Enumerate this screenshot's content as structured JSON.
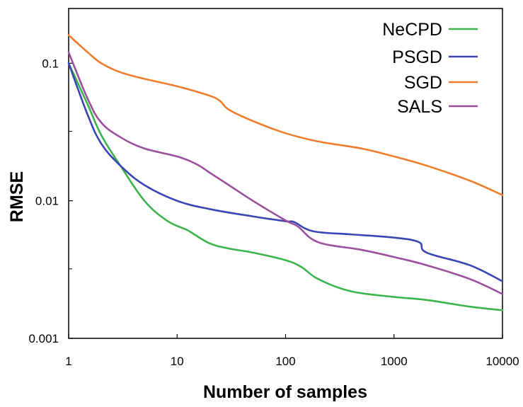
{
  "chart_data": {
    "type": "line",
    "xlabel": "Number of samples",
    "ylabel": "RMSE",
    "xscale": "log",
    "yscale": "log",
    "xlim": [
      1,
      10000
    ],
    "ylim": [
      0.001,
      0.25
    ],
    "xticks": [
      {
        "value": 1,
        "label": "1"
      },
      {
        "value": 10,
        "label": "10"
      },
      {
        "value": 100,
        "label": "100"
      },
      {
        "value": 1000,
        "label": "1000"
      },
      {
        "value": 10000,
        "label": "10000"
      }
    ],
    "yticks": [
      {
        "value": 0.001,
        "label": "0.001"
      },
      {
        "value": 0.01,
        "label": "0.01"
      },
      {
        "value": 0.1,
        "label": "0.1"
      }
    ],
    "y_minor_ticks": [
      0.0032,
      0.032
    ],
    "grid": false,
    "legend_position": "top-right",
    "series": [
      {
        "name": "NeCPD",
        "color": "#3cb44b",
        "points": [
          [
            1,
            0.1
          ],
          [
            1.5,
            0.05
          ],
          [
            2,
            0.03
          ],
          [
            3,
            0.018
          ],
          [
            5,
            0.01
          ],
          [
            8,
            0.0072
          ],
          [
            12,
            0.0062
          ],
          [
            13,
            0.006
          ],
          [
            20,
            0.0049
          ],
          [
            30,
            0.0045
          ],
          [
            50,
            0.0042
          ],
          [
            100,
            0.0037
          ],
          [
            140,
            0.0033
          ],
          [
            200,
            0.0027
          ],
          [
            400,
            0.0022
          ],
          [
            1000,
            0.002
          ],
          [
            2000,
            0.0019
          ],
          [
            5000,
            0.0017
          ],
          [
            10000,
            0.0016
          ]
        ]
      },
      {
        "name": "PSGD",
        "color": "#3a45b6",
        "points": [
          [
            1,
            0.1
          ],
          [
            1.5,
            0.042
          ],
          [
            2,
            0.026
          ],
          [
            3,
            0.018
          ],
          [
            5,
            0.013
          ],
          [
            10,
            0.01
          ],
          [
            20,
            0.0087
          ],
          [
            50,
            0.0077
          ],
          [
            100,
            0.0071
          ],
          [
            120,
            0.007
          ],
          [
            180,
            0.006
          ],
          [
            400,
            0.0057
          ],
          [
            1000,
            0.0054
          ],
          [
            1700,
            0.005
          ],
          [
            2000,
            0.0042
          ],
          [
            5000,
            0.0034
          ],
          [
            10000,
            0.0026
          ]
        ]
      },
      {
        "name": "SGD",
        "color": "#f07d2d",
        "points": [
          [
            1,
            0.16
          ],
          [
            1.5,
            0.12
          ],
          [
            2,
            0.1
          ],
          [
            3,
            0.086
          ],
          [
            5,
            0.077
          ],
          [
            10,
            0.068
          ],
          [
            20,
            0.058
          ],
          [
            25,
            0.053
          ],
          [
            30,
            0.046
          ],
          [
            50,
            0.038
          ],
          [
            100,
            0.031
          ],
          [
            200,
            0.027
          ],
          [
            500,
            0.024
          ],
          [
            1000,
            0.021
          ],
          [
            2000,
            0.018
          ],
          [
            5000,
            0.014
          ],
          [
            10000,
            0.011
          ]
        ]
      },
      {
        "name": "SALS",
        "color": "#9c4f9e",
        "points": [
          [
            1,
            0.12
          ],
          [
            1.5,
            0.055
          ],
          [
            2,
            0.037
          ],
          [
            3,
            0.029
          ],
          [
            5,
            0.024
          ],
          [
            10,
            0.021
          ],
          [
            15,
            0.0185
          ],
          [
            20,
            0.016
          ],
          [
            30,
            0.013
          ],
          [
            50,
            0.01
          ],
          [
            100,
            0.0072
          ],
          [
            130,
            0.0065
          ],
          [
            200,
            0.005
          ],
          [
            500,
            0.0044
          ],
          [
            1000,
            0.0039
          ],
          [
            2000,
            0.0034
          ],
          [
            5000,
            0.0027
          ],
          [
            10000,
            0.0021
          ]
        ]
      }
    ]
  }
}
